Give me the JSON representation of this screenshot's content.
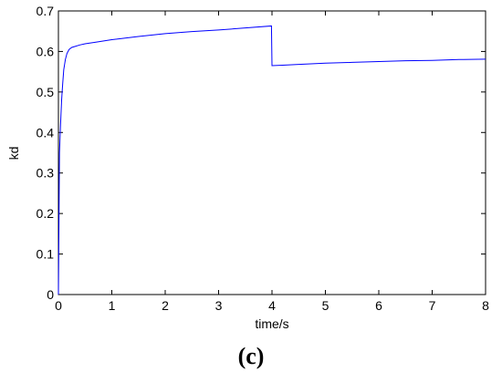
{
  "chart_data": {
    "type": "line",
    "xlabel": "time/s",
    "ylabel": "kd",
    "xlim": [
      0,
      8
    ],
    "ylim": [
      0,
      0.7
    ],
    "xticks": [
      0,
      1,
      2,
      3,
      4,
      5,
      6,
      7,
      8
    ],
    "yticks": [
      0,
      0.1,
      0.2,
      0.3,
      0.4,
      0.5,
      0.6,
      0.7
    ],
    "xtick_labels": [
      "0",
      "1",
      "2",
      "3",
      "4",
      "5",
      "6",
      "7",
      "8"
    ],
    "ytick_labels": [
      "0",
      "0.1",
      "0.2",
      "0.3",
      "0.4",
      "0.5",
      "0.6",
      "0.7"
    ],
    "grid": false,
    "line_color": "#0000ff",
    "series": [
      {
        "x": [
          0,
          0.02,
          0.04,
          0.06,
          0.08,
          0.1,
          0.13,
          0.16,
          0.2,
          0.25,
          0.3,
          0.4,
          0.5,
          0.7,
          1.0,
          1.5,
          2.0,
          2.5,
          3.0,
          3.5,
          3.99,
          4.0,
          4.2,
          4.5,
          5.0,
          5.5,
          6.0,
          6.5,
          7.0,
          7.5,
          8.0
        ],
        "y": [
          0,
          0.35,
          0.42,
          0.48,
          0.52,
          0.555,
          0.58,
          0.595,
          0.605,
          0.61,
          0.612,
          0.616,
          0.619,
          0.623,
          0.629,
          0.637,
          0.644,
          0.649,
          0.653,
          0.658,
          0.663,
          0.565,
          0.566,
          0.568,
          0.571,
          0.573,
          0.575,
          0.577,
          0.578,
          0.58,
          0.581
        ]
      }
    ]
  },
  "panel_label": "(c)"
}
